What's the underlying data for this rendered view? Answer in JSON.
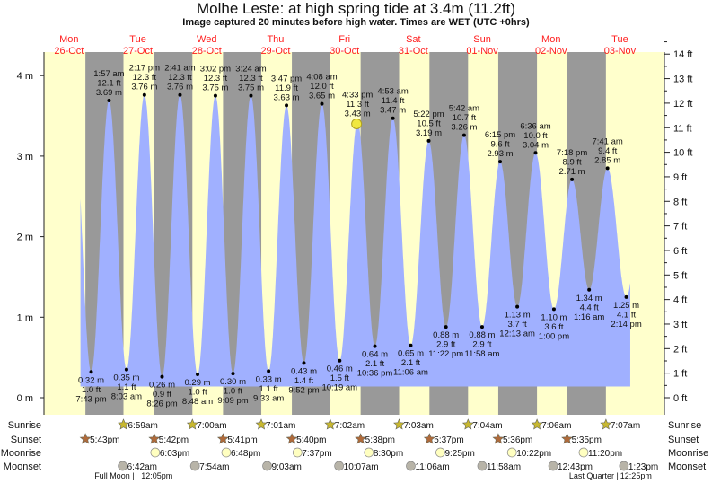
{
  "title": "Molhe Leste: at high  spring tide at 3.4m (11.2ft)",
  "subtitle": "Image captured 20 minutes before high water. Times are WET (UTC +0hrs)",
  "colors": {
    "day": "#ffffcc",
    "night": "#999999",
    "water": "#a0b0ff",
    "day_label": "#ff2020",
    "sun": "#c8b830",
    "sunset": "#b06a3a",
    "moonrise": "#ffffc0",
    "moonset": "#b8b4a8"
  },
  "days": [
    {
      "name": "Mon",
      "date": "26-Oct",
      "noon_h": 12
    },
    {
      "name": "Tue",
      "date": "27-Oct",
      "noon_h": 36
    },
    {
      "name": "Wed",
      "date": "28-Oct",
      "noon_h": 60
    },
    {
      "name": "Thu",
      "date": "29-Oct",
      "noon_h": 84
    },
    {
      "name": "Fri",
      "date": "30-Oct",
      "noon_h": 108
    },
    {
      "name": "Sat",
      "date": "31-Oct",
      "noon_h": 132
    },
    {
      "name": "Sun",
      "date": "01-Nov",
      "noon_h": 156
    },
    {
      "name": "Mon",
      "date": "02-Nov",
      "noon_h": 180
    },
    {
      "name": "Tue",
      "date": "03-Nov",
      "noon_h": 204
    }
  ],
  "chart_data": {
    "type": "area",
    "title": "Molhe Leste: at high  spring tide at 3.4m (11.2ft)",
    "x_unit": "hours since Mon 26-Oct 00:00 WET",
    "xlim": [
      3.3,
      219.5
    ],
    "ylim_m": [
      -0.1,
      4.4
    ],
    "m_ticks": [
      "0 m",
      "1 m",
      "2 m",
      "3 m",
      "4 m"
    ],
    "ft_ticks": [
      "0 ft",
      "1 ft",
      "2 ft",
      "3 ft",
      "4 ft",
      "5 ft",
      "6 ft",
      "7 ft",
      "8 ft",
      "9 ft",
      "10 ft",
      "11 ft",
      "12 ft",
      "13 ft",
      "14 ft"
    ],
    "current": {
      "h": 112.22,
      "m": 3.4
    },
    "extremes": [
      {
        "type": "low",
        "h": 19.72,
        "time": "7:43 pm",
        "ft": "1.0 ft",
        "m": 0.32,
        "m_label": "0.32 m"
      },
      {
        "type": "high",
        "h": 25.95,
        "time": "1:57 am",
        "ft": "12.1 ft",
        "m": 3.69,
        "m_label": "3.69 m"
      },
      {
        "type": "low",
        "h": 32.05,
        "time": "8:03 am",
        "ft": "1.1 ft",
        "m": 0.35,
        "m_label": "0.35 m"
      },
      {
        "type": "high",
        "h": 38.28,
        "time": "2:17 pm",
        "ft": "12.3 ft",
        "m": 3.76,
        "m_label": "3.76 m"
      },
      {
        "type": "low",
        "h": 44.43,
        "time": "8:26 pm",
        "ft": "0.9 ft",
        "m": 0.26,
        "m_label": "0.26 m"
      },
      {
        "type": "high",
        "h": 50.68,
        "time": "2:41 am",
        "ft": "12.3 ft",
        "m": 3.76,
        "m_label": "3.76 m"
      },
      {
        "type": "low",
        "h": 56.8,
        "time": "8:48 am",
        "ft": "1.0 ft",
        "m": 0.29,
        "m_label": "0.29 m"
      },
      {
        "type": "high",
        "h": 63.03,
        "time": "3:02 pm",
        "ft": "12.3 ft",
        "m": 3.75,
        "m_label": "3.75 m"
      },
      {
        "type": "low",
        "h": 69.15,
        "time": "9:09 pm",
        "ft": "1.0 ft",
        "m": 0.3,
        "m_label": "0.30 m"
      },
      {
        "type": "high",
        "h": 75.4,
        "time": "3:24 am",
        "ft": "12.3 ft",
        "m": 3.75,
        "m_label": "3.75 m"
      },
      {
        "type": "low",
        "h": 81.55,
        "time": "9:33 am",
        "ft": "1.1 ft",
        "m": 0.33,
        "m_label": "0.33 m"
      },
      {
        "type": "high",
        "h": 87.78,
        "time": "3:47 pm",
        "ft": "11.9 ft",
        "m": 3.63,
        "m_label": "3.63 m"
      },
      {
        "type": "low",
        "h": 93.87,
        "time": "9:52 pm",
        "ft": "1.4 ft",
        "m": 0.43,
        "m_label": "0.43 m"
      },
      {
        "type": "high",
        "h": 100.13,
        "time": "4:08 am",
        "ft": "12.0 ft",
        "m": 3.65,
        "m_label": "3.65 m"
      },
      {
        "type": "low",
        "h": 106.32,
        "time": "10:19 am",
        "ft": "1.5 ft",
        "m": 0.46,
        "m_label": "0.46 m"
      },
      {
        "type": "high",
        "h": 112.55,
        "time": "4:33 pm",
        "ft": "11.3 ft",
        "m": 3.43,
        "m_label": "3.43 m"
      },
      {
        "type": "low",
        "h": 118.6,
        "time": "10:36 pm",
        "ft": "2.1 ft",
        "m": 0.64,
        "m_label": "0.64 m"
      },
      {
        "type": "high",
        "h": 124.88,
        "time": "4:53 am",
        "ft": "11.4 ft",
        "m": 3.47,
        "m_label": "3.47 m"
      },
      {
        "type": "low",
        "h": 131.1,
        "time": "11:06 am",
        "ft": "2.1 ft",
        "m": 0.65,
        "m_label": "0.65 m"
      },
      {
        "type": "high",
        "h": 137.37,
        "time": "5:22 pm",
        "ft": "10.5 ft",
        "m": 3.19,
        "m_label": "3.19 m"
      },
      {
        "type": "low",
        "h": 143.37,
        "time": "11:22 pm",
        "ft": "2.9 ft",
        "m": 0.88,
        "m_label": "0.88 m"
      },
      {
        "type": "high",
        "h": 149.7,
        "time": "5:42 am",
        "ft": "10.7 ft",
        "m": 3.26,
        "m_label": "3.26 m"
      },
      {
        "type": "low",
        "h": 155.97,
        "time": "11:58 am",
        "ft": "2.9 ft",
        "m": 0.88,
        "m_label": "0.88 m"
      },
      {
        "type": "high",
        "h": 162.25,
        "time": "6:15 pm",
        "ft": "9.6 ft",
        "m": 2.93,
        "m_label": "2.93 m"
      },
      {
        "type": "low",
        "h": 168.22,
        "time": "12:13 am",
        "ft": "3.7 ft",
        "m": 1.13,
        "m_label": "1.13 m"
      },
      {
        "type": "high",
        "h": 174.6,
        "time": "6:36 am",
        "ft": "10.0 ft",
        "m": 3.04,
        "m_label": "3.04 m"
      },
      {
        "type": "low",
        "h": 181.0,
        "time": "1:00 pm",
        "ft": "3.6 ft",
        "m": 1.1,
        "m_label": "1.10 m"
      },
      {
        "type": "high",
        "h": 187.3,
        "time": "7:18 pm",
        "ft": "8.9 ft",
        "m": 2.71,
        "m_label": "2.71 m"
      },
      {
        "type": "low",
        "h": 193.27,
        "time": "1:16 am",
        "ft": "4.4 ft",
        "m": 1.34,
        "m_label": "1.34 m"
      },
      {
        "type": "high",
        "h": 199.68,
        "time": "7:41 am",
        "ft": "9.4 ft",
        "m": 2.85,
        "m_label": "2.85 m"
      },
      {
        "type": "low",
        "h": 206.23,
        "time": "2:14 pm",
        "ft": "4.1 ft",
        "m": 1.25,
        "m_label": "1.25 m"
      }
    ]
  },
  "rows": {
    "labels": {
      "sunrise": "Sunrise",
      "sunset": "Sunset",
      "moonrise": "Moonrise",
      "moonset": "Moonset"
    },
    "sunrise": [
      {
        "h": 30.98,
        "t": "6:59am"
      },
      {
        "h": 55.0,
        "t": "7:00am"
      },
      {
        "h": 79.02,
        "t": "7:01am"
      },
      {
        "h": 103.03,
        "t": "7:02am"
      },
      {
        "h": 127.05,
        "t": "7:03am"
      },
      {
        "h": 151.07,
        "t": "7:04am"
      },
      {
        "h": 175.1,
        "t": "7:06am"
      },
      {
        "h": 199.12,
        "t": "7:07am"
      }
    ],
    "sunset": [
      {
        "h": 17.72,
        "t": "5:43pm"
      },
      {
        "h": 41.7,
        "t": "5:42pm"
      },
      {
        "h": 65.68,
        "t": "5:41pm"
      },
      {
        "h": 89.67,
        "t": "5:40pm"
      },
      {
        "h": 113.63,
        "t": "5:38pm"
      },
      {
        "h": 137.62,
        "t": "5:37pm"
      },
      {
        "h": 161.6,
        "t": "5:36pm"
      },
      {
        "h": 185.58,
        "t": "5:35pm"
      }
    ],
    "moonrise": [
      {
        "h": 42.05,
        "t": "6:03pm"
      },
      {
        "h": 66.8,
        "t": "6:48pm"
      },
      {
        "h": 91.62,
        "t": "7:37pm"
      },
      {
        "h": 116.5,
        "t": "8:30pm"
      },
      {
        "h": 141.42,
        "t": "9:25pm"
      },
      {
        "h": 166.37,
        "t": "10:22pm"
      },
      {
        "h": 191.33,
        "t": "11:20pm"
      }
    ],
    "moonset": [
      {
        "h": 30.7,
        "t": "6:42am"
      },
      {
        "h": 55.9,
        "t": "7:54am"
      },
      {
        "h": 81.05,
        "t": "9:03am"
      },
      {
        "h": 106.12,
        "t": "10:07am"
      },
      {
        "h": 131.1,
        "t": "11:06am"
      },
      {
        "h": 155.97,
        "t": "11:58am"
      },
      {
        "h": 180.72,
        "t": "12:43pm"
      },
      {
        "h": 205.38,
        "t": "1:23pm"
      }
    ],
    "phases": [
      {
        "h": 24,
        "label": "Full Moon",
        "t": "12:05pm",
        "anchor": "start"
      },
      {
        "h": 216,
        "label": "Last Quarter",
        "t": "12:25pm",
        "anchor": "end"
      }
    ]
  }
}
